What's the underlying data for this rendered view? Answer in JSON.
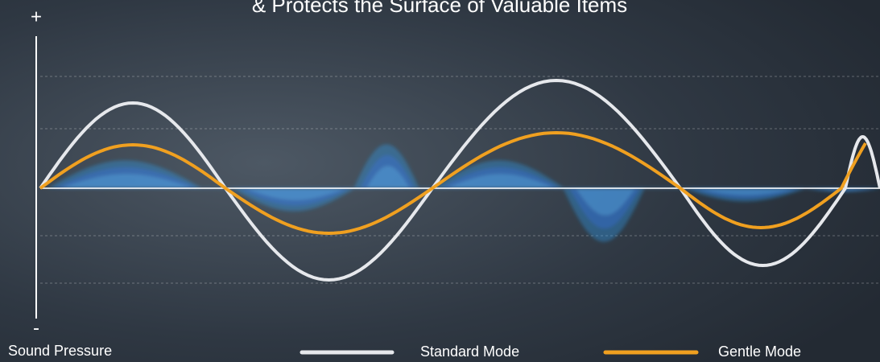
{
  "header": {
    "title": "& Protects the Surface of Valuable Items"
  },
  "axis": {
    "top": "+",
    "bottom": "-",
    "label": "Sound Pressure"
  },
  "legend": [
    {
      "name": "Standard Mode",
      "color": "#e6e8ec"
    },
    {
      "name": "Gentle Mode",
      "color": "#f0a020"
    }
  ]
}
